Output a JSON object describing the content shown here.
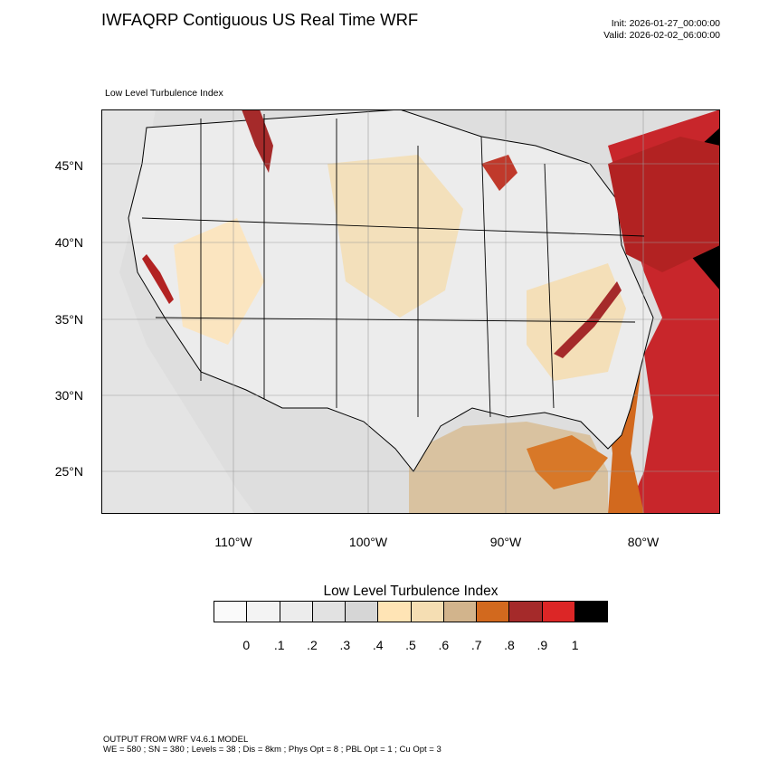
{
  "header": {
    "title": "IWFAQRP Contiguous US Real Time WRF",
    "init": "Init: 2026-01-27_00:00:00",
    "valid": "Valid: 2026-02-02_06:00:00"
  },
  "map": {
    "subtitle": "Low Level Turbulence Index",
    "lat_labels": [
      "45°N",
      "40°N",
      "35°N",
      "30°N",
      "25°N"
    ],
    "lon_labels": [
      "110°W",
      "100°W",
      "90°W",
      "80°W"
    ],
    "background_color": "#e6e6e6",
    "ocean_color": "#d8d8d8",
    "land_color": "#ededed"
  },
  "colorbar": {
    "title": "Low Level Turbulence Index",
    "labels": [
      "0",
      ".1",
      ".2",
      ".3",
      ".4",
      ".5",
      ".6",
      ".7",
      ".8",
      ".9",
      "1"
    ],
    "colors": [
      "#fafafa",
      "#f3f3f3",
      "#ececec",
      "#e2e2e2",
      "#d6d6d6",
      "#ffe4b5",
      "#f5deb3",
      "#d2b48c",
      "#d2691e",
      "#a52a2a",
      "#dc2626",
      "#000000"
    ]
  },
  "footer": {
    "line1": "OUTPUT FROM WRF V4.6.1 MODEL",
    "line2": "WE = 580 ; SN = 380 ; Levels = 38 ; Dis = 8km ; Phys Opt = 8 ; PBL Opt = 1 ; Cu Opt = 3"
  }
}
